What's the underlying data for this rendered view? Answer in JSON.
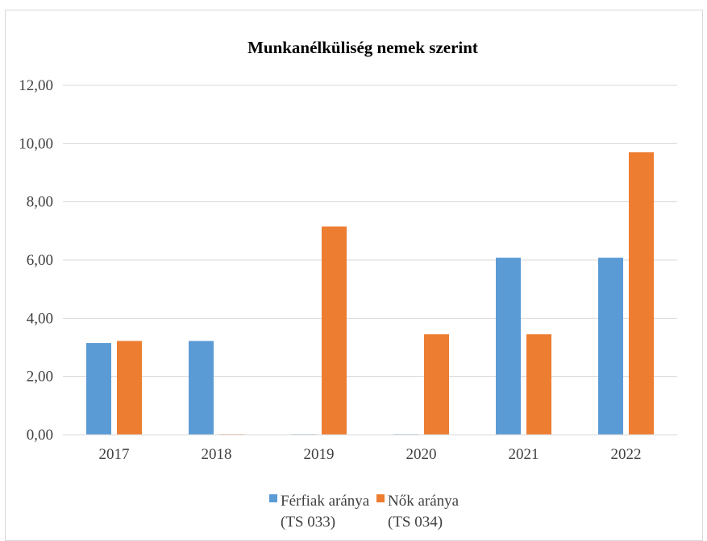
{
  "chart_data": {
    "type": "bar",
    "title": "Munkanélküliség nemek szerint",
    "xlabel": "",
    "ylabel": "",
    "categories": [
      "2017",
      "2018",
      "2019",
      "2020",
      "2021",
      "2022"
    ],
    "ylim": [
      0,
      12
    ],
    "yticks": [
      "0,00",
      "2,00",
      "4,00",
      "6,00",
      "8,00",
      "10,00",
      "12,00"
    ],
    "grid": true,
    "legend_position": "bottom",
    "series": [
      {
        "name": "Férfiak aránya (TS 033)",
        "legend_lines": [
          "Férfiak aránya",
          "(TS 033)"
        ],
        "color": "#5b9bd5",
        "values": [
          3.15,
          3.22,
          0.02,
          0.02,
          6.08,
          6.08
        ]
      },
      {
        "name": "Nők aránya (TS 034)",
        "legend_lines": [
          "Nők aránya",
          "(TS 034)"
        ],
        "color": "#ed7d31",
        "values": [
          3.22,
          0.02,
          7.15,
          3.45,
          3.45,
          9.7
        ]
      }
    ]
  }
}
